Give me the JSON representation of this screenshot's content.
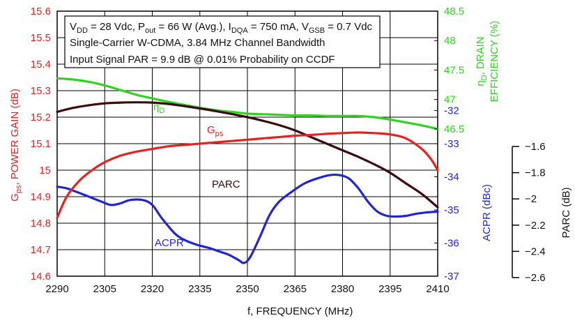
{
  "chart_data": {
    "type": "line",
    "conditions": {
      "line1": {
        "p1": "V",
        "s1": "DD",
        "p2": " = 28 Vdc, P",
        "s2": "out",
        "p3": " = 66 W (Avg.), I",
        "s3": "DQA",
        "p4": " = 750 mA, V",
        "s4": "GSB",
        "p5": " = 0.7 Vdc"
      },
      "line2": "Single-Carrier W-CDMA, 3.84 MHz Channel Bandwidth",
      "line3": "Input Signal PAR = 9.9 dB @ 0.01% Probability on CCDF"
    },
    "xlabel": "f, FREQUENCY (MHz)",
    "xlim": [
      2290,
      2410
    ],
    "x_ticks": [
      "2290",
      "2305",
      "2320",
      "2335",
      "2350",
      "2365",
      "2380",
      "2395",
      "2410"
    ],
    "axes": {
      "gain": {
        "label_pre": "G",
        "label_sub": "ps",
        "label_post": ", POWER GAIN (dB)",
        "lim": [
          14.6,
          15.6
        ],
        "ticks": [
          "14.6",
          "14.7",
          "14.8",
          "14.9",
          "15",
          "15.1",
          "15.2",
          "15.3",
          "15.4",
          "15.5",
          "15.6"
        ]
      },
      "efficiency": {
        "label_pre": "η",
        "label_sub": "D",
        "label_post": ", DRAIN",
        "label_line2": "EFFICIENCY (%)",
        "lim": [
          44,
          48.5
        ],
        "ticks": [
          "46.5",
          "47",
          "47.5",
          "48",
          "48.5"
        ]
      },
      "acpr": {
        "label": "ACPR (dBc)",
        "lim": [
          -37,
          -29
        ],
        "ticks": [
          "-32",
          "-33",
          "-34",
          "-35",
          "-36",
          "-37"
        ]
      },
      "parc": {
        "label": "PARC (dB)",
        "lim": [
          -2.6,
          -1.6
        ],
        "ticks": [
          "−1.6",
          "−1.8",
          "−2",
          "−2.2",
          "−2.4",
          "−2.6"
        ]
      }
    },
    "series": [
      {
        "name": "Gps",
        "label_pre": "G",
        "label_sub": "ps",
        "axis": "gain",
        "color": "#e8211f",
        "x": [
          2290,
          2293,
          2297,
          2301,
          2305,
          2310,
          2315,
          2320,
          2325,
          2330,
          2335,
          2340,
          2345,
          2350,
          2355,
          2360,
          2365,
          2370,
          2375,
          2380,
          2385,
          2390,
          2395,
          2400,
          2405,
          2408,
          2410
        ],
        "values": [
          14.82,
          14.9,
          14.96,
          15.0,
          15.03,
          15.055,
          15.07,
          15.08,
          15.09,
          15.095,
          15.1,
          15.105,
          15.11,
          15.115,
          15.12,
          15.125,
          15.13,
          15.133,
          15.137,
          15.14,
          15.142,
          15.14,
          15.135,
          15.12,
          15.08,
          15.04,
          15.0
        ]
      },
      {
        "name": "ηD",
        "label_pre": "η",
        "label_sub": "D",
        "axis": "efficiency",
        "color": "#2fd41e",
        "x": [
          2290,
          2295,
          2300,
          2305,
          2310,
          2315,
          2320,
          2325,
          2330,
          2335,
          2340,
          2345,
          2350,
          2355,
          2360,
          2365,
          2370,
          2375,
          2380,
          2385,
          2390,
          2395,
          2400,
          2405,
          2410
        ],
        "values": [
          47.36,
          47.34,
          47.3,
          47.24,
          47.16,
          47.08,
          47.02,
          46.96,
          46.91,
          46.86,
          46.82,
          46.79,
          46.76,
          46.75,
          46.74,
          46.73,
          46.73,
          46.72,
          46.72,
          46.72,
          46.7,
          46.66,
          46.61,
          46.56,
          46.5
        ]
      },
      {
        "name": "PARC",
        "axis": "parc",
        "color": "#3b0a0a",
        "x": [
          2290,
          2295,
          2300,
          2305,
          2310,
          2315,
          2320,
          2325,
          2330,
          2335,
          2340,
          2345,
          2350,
          2355,
          2360,
          2365,
          2370,
          2375,
          2380,
          2385,
          2390,
          2395,
          2400,
          2405,
          2410
        ],
        "values": [
          -1.98,
          -1.965,
          -1.955,
          -1.948,
          -1.945,
          -1.944,
          -1.945,
          -1.95,
          -1.958,
          -1.967,
          -1.977,
          -1.988,
          -2.0,
          -2.014,
          -2.03,
          -2.05,
          -2.075,
          -2.1,
          -2.125,
          -2.15,
          -2.178,
          -2.21,
          -2.25,
          -2.29,
          -2.34
        ]
      },
      {
        "name": "ACPR",
        "axis": "acpr",
        "color": "#1f25d6",
        "x": [
          2290,
          2293,
          2296,
          2300,
          2304,
          2307,
          2310,
          2313,
          2317,
          2320,
          2323,
          2327,
          2330,
          2334,
          2338,
          2341,
          2344,
          2347,
          2349,
          2351,
          2354,
          2357,
          2360,
          2364,
          2368,
          2372,
          2376,
          2379,
          2382,
          2385,
          2388,
          2391,
          2394,
          2397,
          2400,
          2403,
          2406,
          2410
        ],
        "values": [
          -34.3,
          -34.35,
          -34.45,
          -34.6,
          -34.75,
          -34.85,
          -34.8,
          -34.7,
          -34.7,
          -34.85,
          -35.25,
          -35.7,
          -35.9,
          -36.05,
          -36.15,
          -36.25,
          -36.35,
          -36.5,
          -36.6,
          -36.4,
          -35.8,
          -35.15,
          -34.75,
          -34.45,
          -34.2,
          -34.05,
          -33.95,
          -33.95,
          -34.05,
          -34.35,
          -34.75,
          -35.05,
          -35.18,
          -35.2,
          -35.18,
          -35.12,
          -35.08,
          -35.05
        ]
      }
    ],
    "grid": true
  }
}
